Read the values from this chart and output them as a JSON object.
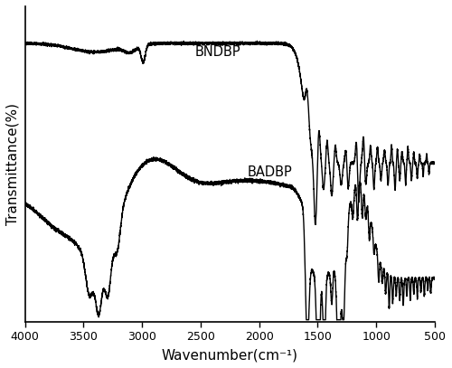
{
  "title": "",
  "xlabel": "Wavenumber(cm⁻¹)",
  "ylabel": "Transmittance(%)",
  "xmin": 500,
  "xmax": 4000,
  "line_color": "#000000",
  "line_width": 1.0,
  "label_BNDBP": "BNDBP",
  "label_BADBP": "BADBP",
  "background_color": "#ffffff",
  "xticks": [
    4000,
    3500,
    3000,
    2500,
    2000,
    1500,
    1000,
    500
  ],
  "xtick_labels": [
    "4000",
    "3500",
    "3000",
    "2500",
    "2000",
    "1500",
    "1000",
    "500"
  ]
}
